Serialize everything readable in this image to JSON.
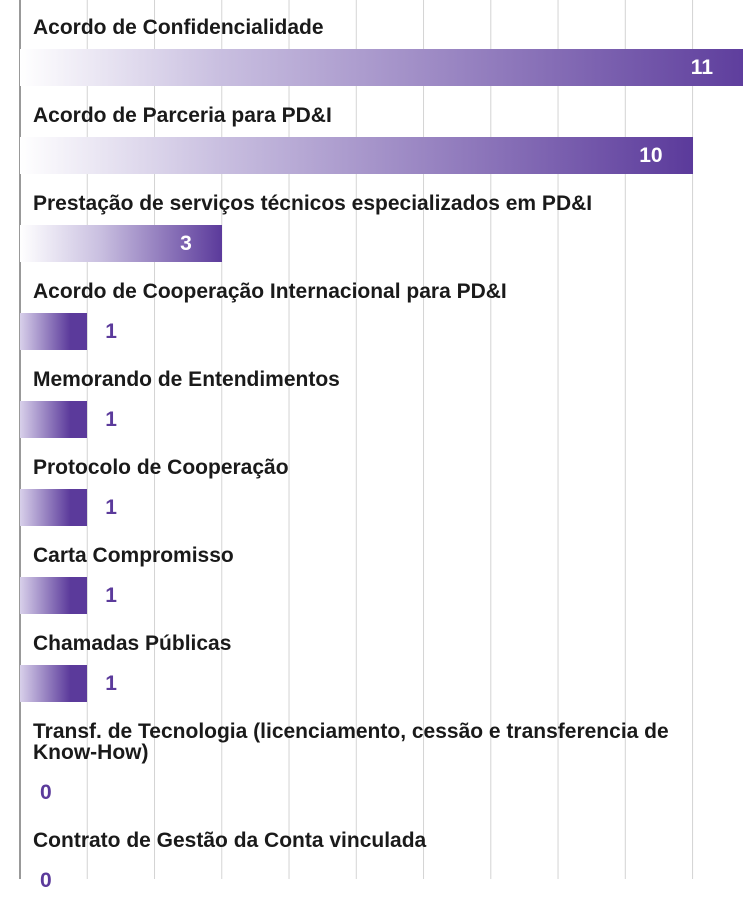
{
  "chart_data": {
    "type": "bar",
    "orientation": "horizontal",
    "categories": [
      "Acordo de Confidencialidade",
      "Acordo de Parceria para PD&I",
      "Prestação de serviços técnicos especializados em PD&I",
      "Acordo de Cooperação Internacional para PD&I",
      "Memorando de Entendimentos",
      "Protocolo de Cooperação",
      "Carta Compromisso",
      "Chamadas Públicas",
      "Transf. de Tecnologia (licenciamento, cessão e transferencia de Know-How)",
      "Contrato de Gestão da Conta vinculada"
    ],
    "values": [
      11,
      10,
      3,
      1,
      1,
      1,
      1,
      1,
      0,
      0
    ],
    "color": "#5b3a9b",
    "xlim": [
      0,
      10.75
    ],
    "xticks": [
      0,
      1,
      2,
      3,
      4,
      5,
      6,
      7,
      8,
      9,
      10
    ],
    "grid": true
  }
}
